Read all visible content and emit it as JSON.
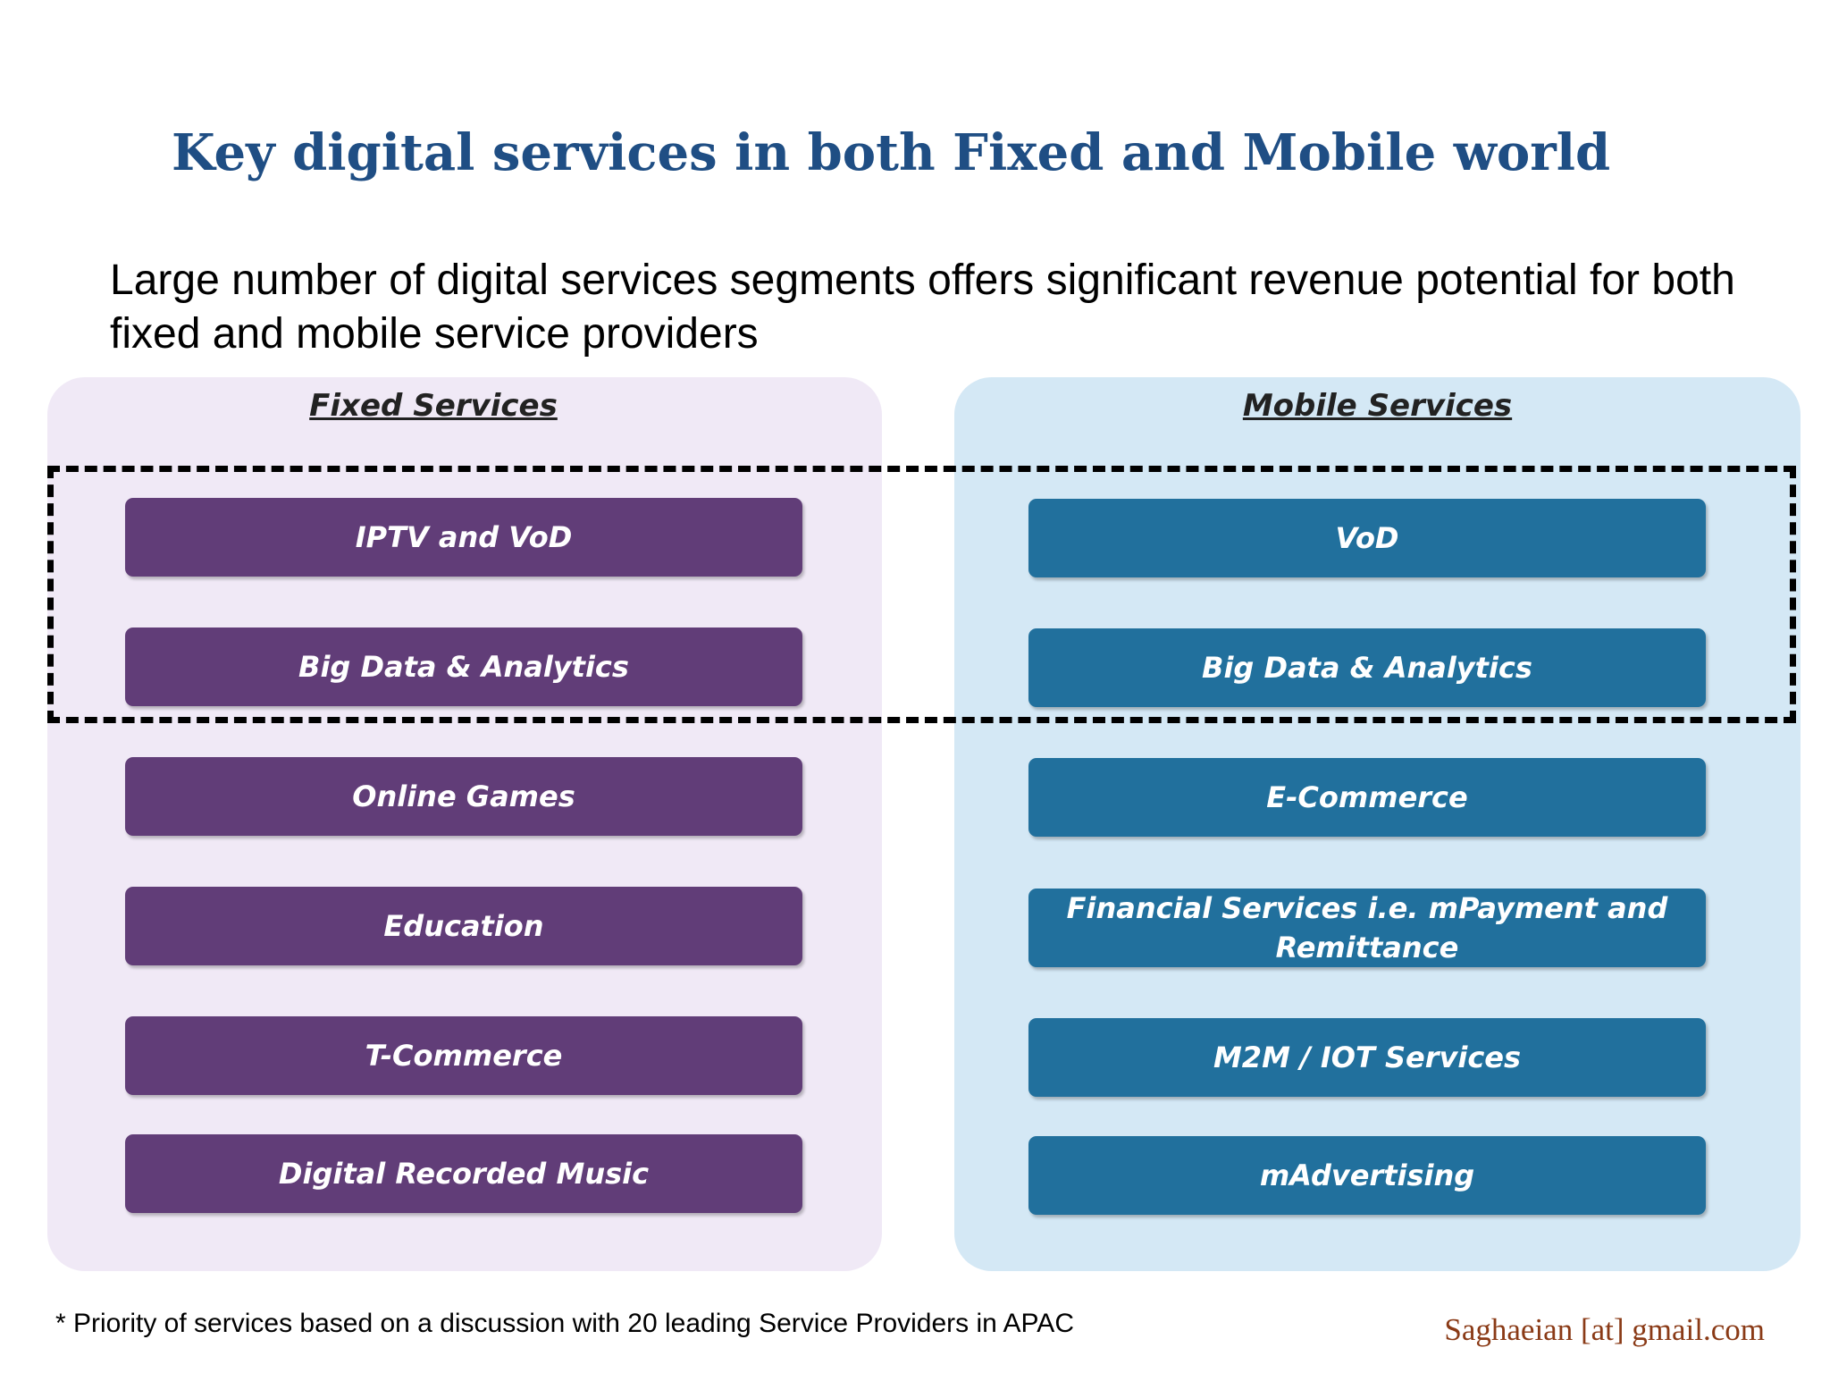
{
  "title": "Key digital services in both Fixed and Mobile world",
  "subtitle": "Large number of digital services segments offers significant revenue potential for both fixed and mobile service providers",
  "fixed": {
    "heading": "Fixed Services",
    "items": [
      "IPTV and VoD",
      "Big Data & Analytics",
      "Online Games",
      "Education",
      "T-Commerce",
      "Digital Recorded Music"
    ]
  },
  "mobile": {
    "heading": "Mobile Services",
    "items": [
      "VoD",
      "Big Data & Analytics",
      "E-Commerce",
      "Financial Services i.e. mPayment and Remittance",
      "M2M / IOT Services",
      "mAdvertising"
    ]
  },
  "footnote": "* Priority of services based on a discussion with 20 leading Service Providers in APAC",
  "credit": "Saghaeian [at] gmail.com",
  "colors": {
    "title": "#1f4e84",
    "fixed_panel": "#f0e9f6",
    "fixed_pill": "#613d78",
    "mobile_panel": "#d4e8f5",
    "mobile_pill": "#21709d",
    "credit": "#8a3a16"
  }
}
